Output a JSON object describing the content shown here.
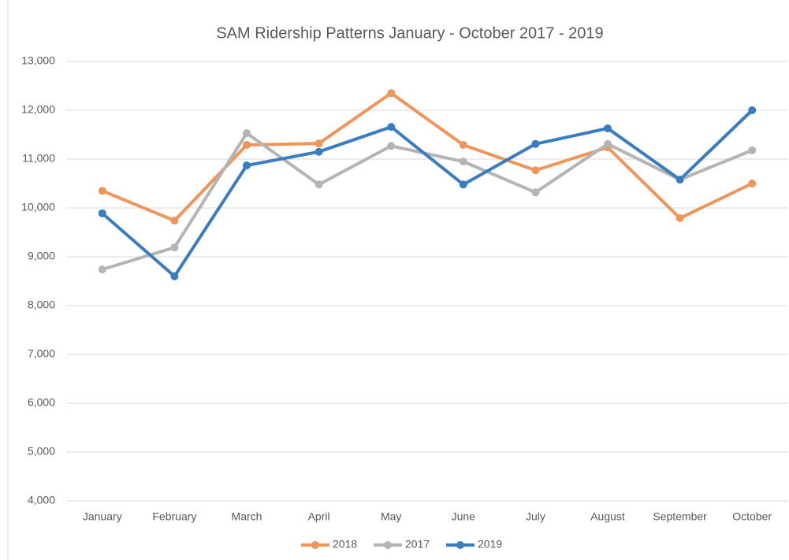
{
  "chart_data": {
    "type": "line",
    "title": "SAM Ridership Patterns January - October 2017 - 2019",
    "categories": [
      "January",
      "February",
      "March",
      "April",
      "May",
      "June",
      "July",
      "August",
      "September",
      "October"
    ],
    "series": [
      {
        "name": "2018",
        "color": "#f0955a",
        "values": [
          10350,
          9740,
          11290,
          11320,
          12350,
          11290,
          10770,
          11240,
          9790,
          10500
        ]
      },
      {
        "name": "2017",
        "color": "#b4b4b4",
        "values": [
          8740,
          9190,
          11530,
          10480,
          11270,
          10950,
          10320,
          11310,
          10580,
          11180
        ]
      },
      {
        "name": "2019",
        "color": "#3a7cc0",
        "values": [
          9890,
          8600,
          10870,
          11150,
          11660,
          10480,
          11310,
          11630,
          10580,
          12000
        ]
      }
    ],
    "ylim": [
      4000,
      13000
    ],
    "yticks": [
      {
        "value": 4000,
        "label": "4,000"
      },
      {
        "value": 5000,
        "label": "5,000"
      },
      {
        "value": 6000,
        "label": "6,000"
      },
      {
        "value": 7000,
        "label": "7,000"
      },
      {
        "value": 8000,
        "label": "8,000"
      },
      {
        "value": 9000,
        "label": "9,000"
      },
      {
        "value": 10000,
        "label": "10,000"
      },
      {
        "value": 11000,
        "label": "11,000"
      },
      {
        "value": 12000,
        "label": "12,000"
      },
      {
        "value": 13000,
        "label": "13,000"
      }
    ],
    "grid": true,
    "legend": "bottom"
  }
}
